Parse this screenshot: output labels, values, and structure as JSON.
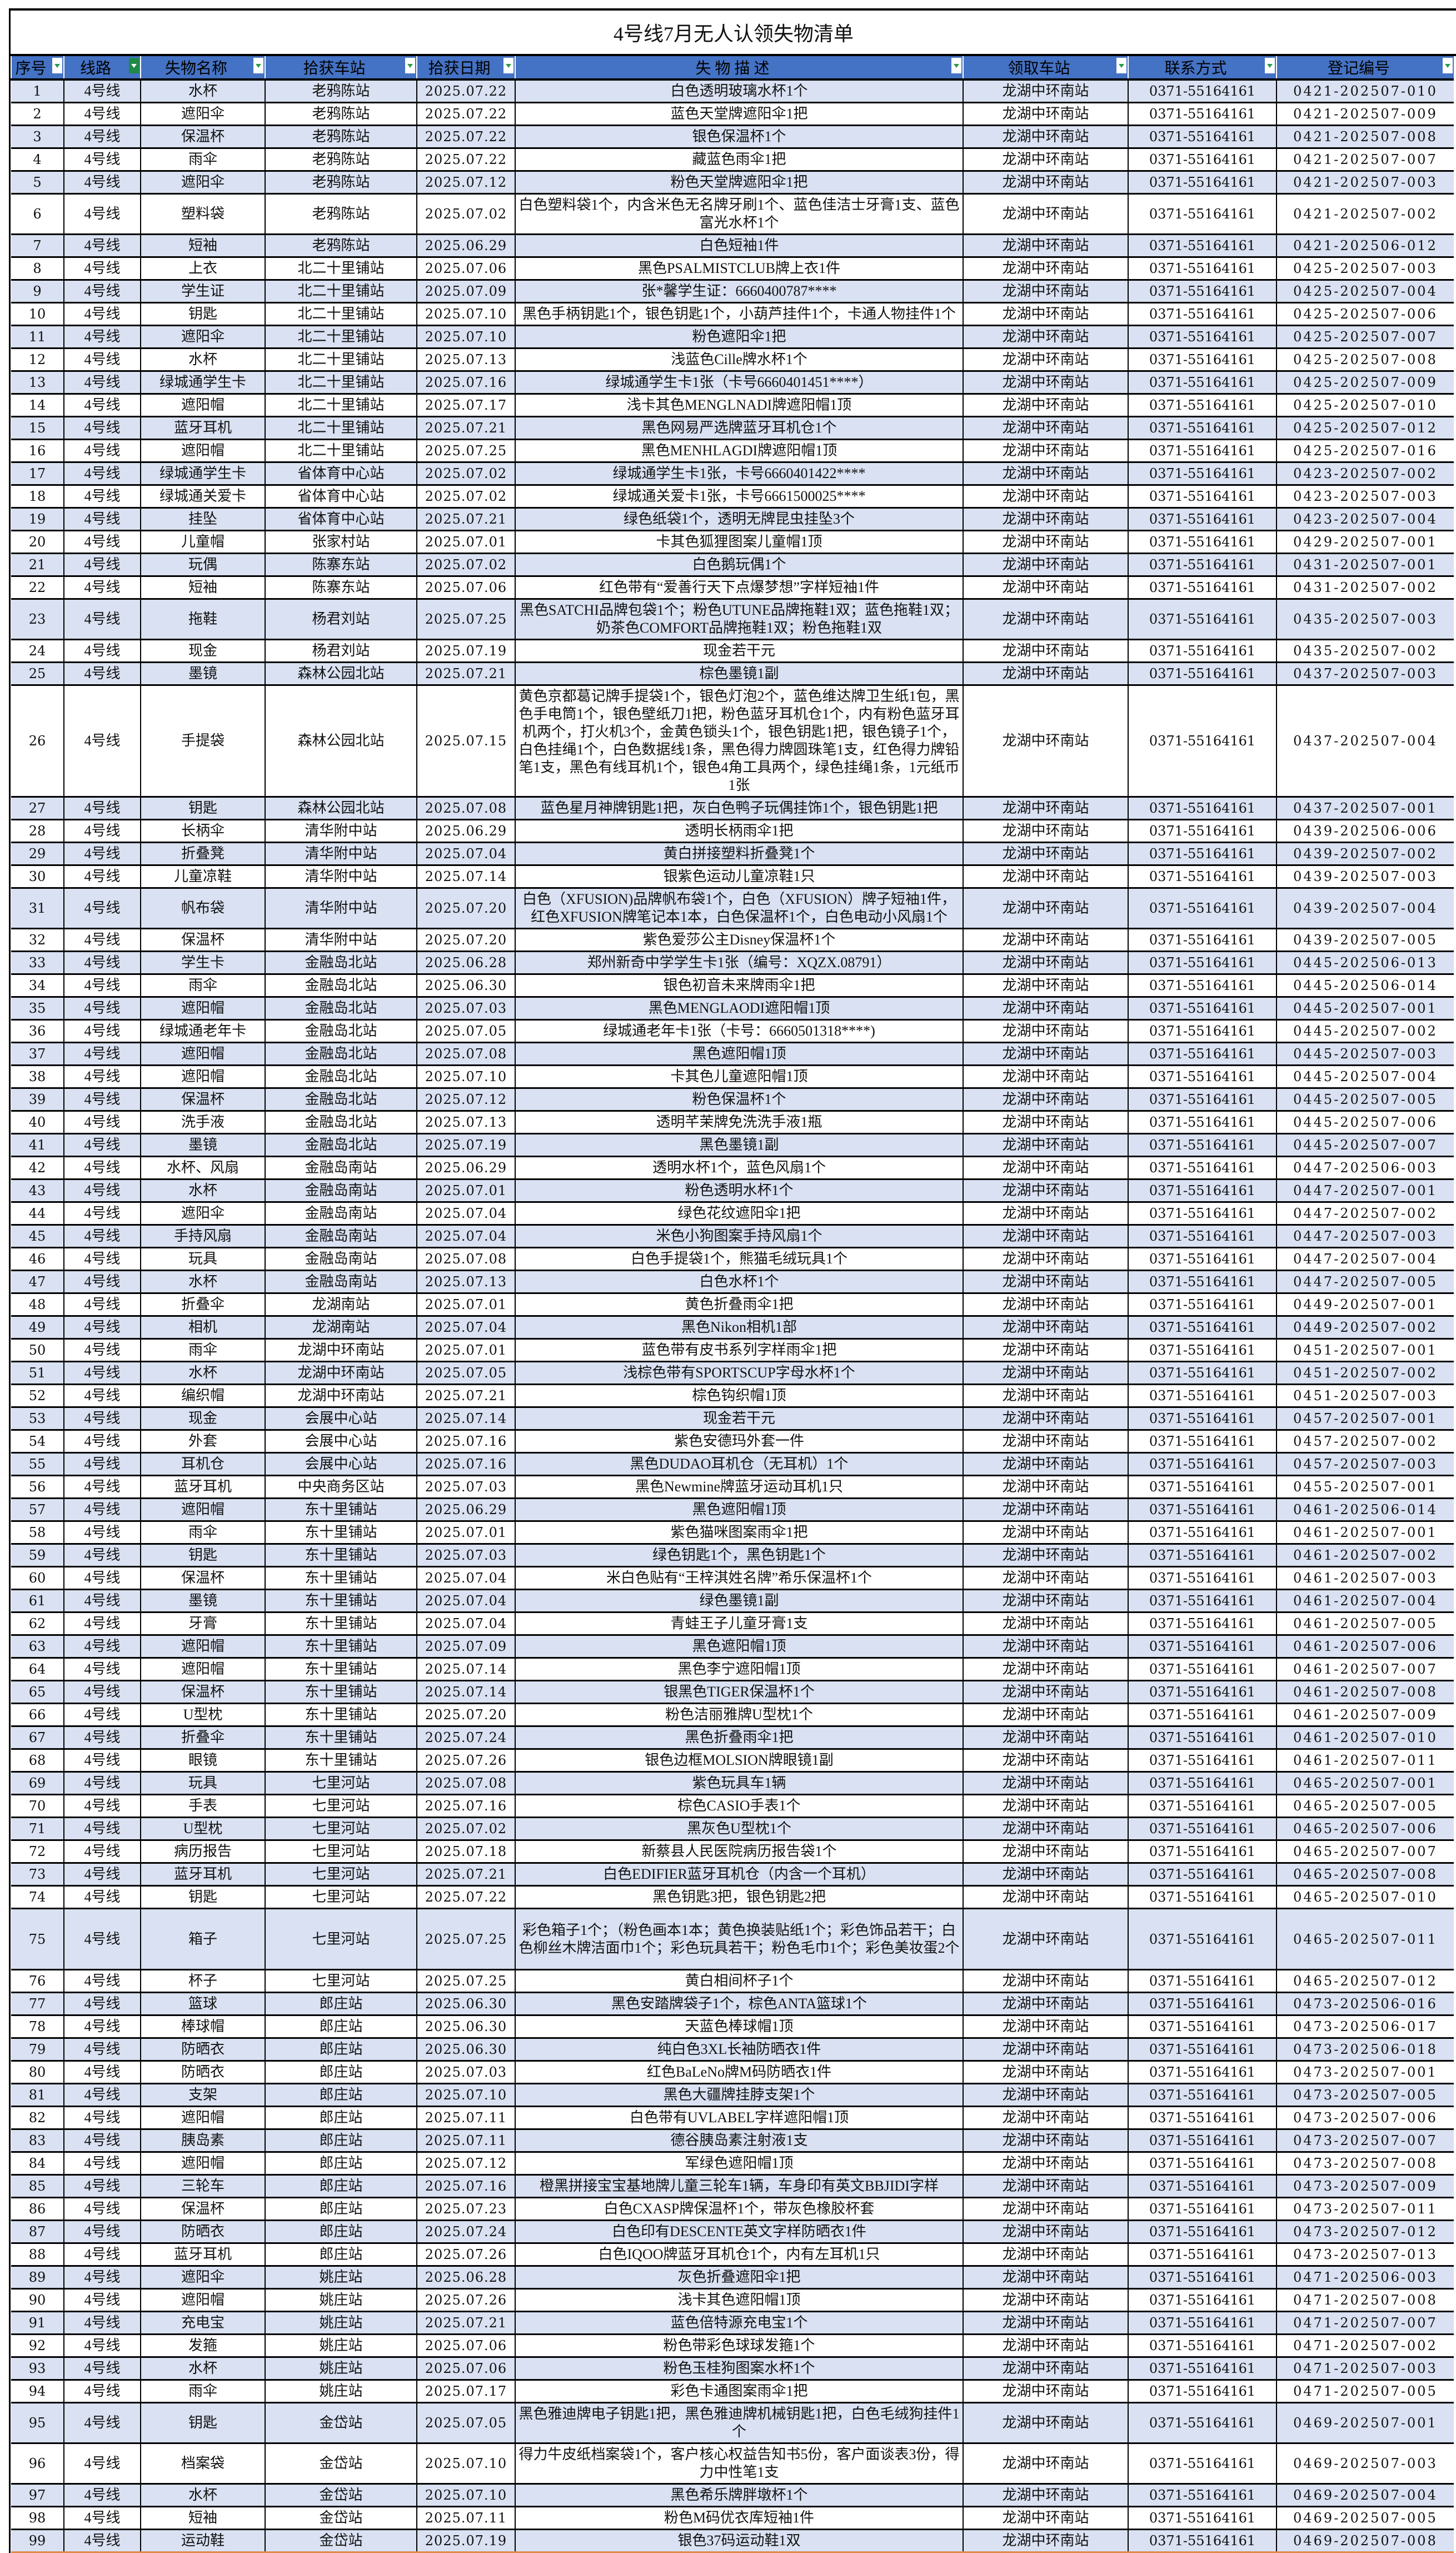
{
  "title": "4号线7月无人认领失物清单",
  "colors": {
    "header_bg": "#4472C4",
    "alt_row_bg": "#D9E1F2",
    "filter_icon": "#2a9a4a"
  },
  "columns": [
    {
      "label": "序号",
      "filter": "dropdown"
    },
    {
      "label": "线路",
      "filter": "filter-active"
    },
    {
      "label": "失物名称",
      "filter": "dropdown"
    },
    {
      "label": "拾获车站",
      "filter": "dropdown"
    },
    {
      "label": "拾获日期",
      "filter": "dropdown"
    },
    {
      "label": "失 物 描 述",
      "filter": "dropdown"
    },
    {
      "label": "领取车站",
      "filter": "dropdown"
    },
    {
      "label": "联系方式",
      "filter": "dropdown"
    },
    {
      "label": "登记编号",
      "filter": "dropdown"
    }
  ],
  "line": "4号线",
  "pickup_station": "龙湖中环南站",
  "phone": "0371-55164161",
  "rows": [
    {
      "no": "1",
      "name": "水杯",
      "station": "老鸦陈站",
      "date": "2025.07.22",
      "desc": "白色透明玻璃水杯1个",
      "code": "0421-202507-010"
    },
    {
      "no": "2",
      "name": "遮阳伞",
      "station": "老鸦陈站",
      "date": "2025.07.22",
      "desc": "蓝色天堂牌遮阳伞1把",
      "code": "0421-202507-009"
    },
    {
      "no": "3",
      "name": "保温杯",
      "station": "老鸦陈站",
      "date": "2025.07.22",
      "desc": "银色保温杯1个",
      "code": "0421-202507-008"
    },
    {
      "no": "4",
      "name": "雨伞",
      "station": "老鸦陈站",
      "date": "2025.07.22",
      "desc": "藏蓝色雨伞1把",
      "code": "0421-202507-007"
    },
    {
      "no": "5",
      "name": "遮阳伞",
      "station": "老鸦陈站",
      "date": "2025.07.12",
      "desc": "粉色天堂牌遮阳伞1把",
      "code": "0421-202507-003"
    },
    {
      "no": "6",
      "name": "塑料袋",
      "station": "老鸦陈站",
      "date": "2025.07.02",
      "desc": "白色塑料袋1个，内含米色无名牌牙刷1个、蓝色佳洁士牙膏1支、蓝色富光水杯1个",
      "code": "0421-202507-002"
    },
    {
      "no": "7",
      "name": "短袖",
      "station": "老鸦陈站",
      "date": "2025.06.29",
      "desc": "白色短袖1件",
      "code": "0421-202506-012"
    },
    {
      "no": "8",
      "name": "上衣",
      "station": "北二十里铺站",
      "date": "2025.07.06",
      "desc": "黑色PSALMISTCLUB牌上衣1件",
      "code": "0425-202507-003"
    },
    {
      "no": "9",
      "name": "学生证",
      "station": "北二十里铺站",
      "date": "2025.07.09",
      "desc": "张*馨学生证：6660400787****",
      "code": "0425-202507-004"
    },
    {
      "no": "10",
      "name": "钥匙",
      "station": "北二十里铺站",
      "date": "2025.07.10",
      "desc": "黑色手柄钥匙1个，银色钥匙1个，小葫芦挂件1个，卡通人物挂件1个",
      "code": "0425-202507-006"
    },
    {
      "no": "11",
      "name": "遮阳伞",
      "station": "北二十里铺站",
      "date": "2025.07.10",
      "desc": "粉色遮阳伞1把",
      "code": "0425-202507-007"
    },
    {
      "no": "12",
      "name": "水杯",
      "station": "北二十里铺站",
      "date": "2025.07.13",
      "desc": "浅蓝色Cille牌水杯1个",
      "code": "0425-202507-008"
    },
    {
      "no": "13",
      "name": "绿城通学生卡",
      "station": "北二十里铺站",
      "date": "2025.07.16",
      "desc": "绿城通学生卡1张（卡号6660401451****）",
      "code": "0425-202507-009"
    },
    {
      "no": "14",
      "name": "遮阳帽",
      "station": "北二十里铺站",
      "date": "2025.07.17",
      "desc": "浅卡其色MENGLNADI牌遮阳帽1顶",
      "code": "0425-202507-010"
    },
    {
      "no": "15",
      "name": "蓝牙耳机",
      "station": "北二十里铺站",
      "date": "2025.07.21",
      "desc": "黑色网易严选牌蓝牙耳机仓1个",
      "code": "0425-202507-012"
    },
    {
      "no": "16",
      "name": "遮阳帽",
      "station": "北二十里铺站",
      "date": "2025.07.25",
      "desc": "黑色MENHLAGDI牌遮阳帽1顶",
      "code": "0425-202507-016"
    },
    {
      "no": "17",
      "name": "绿城通学生卡",
      "station": "省体育中心站",
      "date": "2025.07.02",
      "desc": "绿城通学生卡1张，卡号6660401422****",
      "code": "0423-202507-002"
    },
    {
      "no": "18",
      "name": "绿城通关爱卡",
      "station": "省体育中心站",
      "date": "2025.07.02",
      "desc": "绿城通关爱卡1张，卡号6661500025****",
      "code": "0423-202507-003"
    },
    {
      "no": "19",
      "name": "挂坠",
      "station": "省体育中心站",
      "date": "2025.07.21",
      "desc": "绿色纸袋1个，透明无牌昆虫挂坠3个",
      "code": "0423-202507-004"
    },
    {
      "no": "20",
      "name": "儿童帽",
      "station": "张家村站",
      "date": "2025.07.01",
      "desc": "卡其色狐狸图案儿童帽1顶",
      "code": "0429-202507-001"
    },
    {
      "no": "21",
      "name": "玩偶",
      "station": "陈寨东站",
      "date": "2025.07.02",
      "desc": "白色鹅玩偶1个",
      "code": "0431-202507-001"
    },
    {
      "no": "22",
      "name": "短袖",
      "station": "陈寨东站",
      "date": "2025.07.06",
      "desc": "红色带有“爱善行天下点爆梦想”字样短袖1件",
      "code": "0431-202507-002"
    },
    {
      "no": "23",
      "name": "拖鞋",
      "station": "杨君刘站",
      "date": "2025.07.25",
      "desc": "黑色SATCHI品牌包袋1个；粉色UTUNE品牌拖鞋1双；蓝色拖鞋1双；奶茶色COMFORT品牌拖鞋1双；粉色拖鞋1双",
      "code": "0435-202507-003"
    },
    {
      "no": "24",
      "name": "现金",
      "station": "杨君刘站",
      "date": "2025.07.19",
      "desc": "现金若干元",
      "code": "0435-202507-002"
    },
    {
      "no": "25",
      "name": "墨镜",
      "station": "森林公园北站",
      "date": "2025.07.21",
      "desc": "棕色墨镜1副",
      "code": "0437-202507-003"
    },
    {
      "no": "26",
      "name": "手提袋",
      "station": "森林公园北站",
      "date": "2025.07.15",
      "desc": "黄色京都葛记牌手提袋1个，银色灯泡2个，蓝色维达牌卫生纸1包，黑色手电筒1个，银色壁纸刀1把，粉色蓝牙耳机仓1个，内有粉色蓝牙耳机两个，打火机3个，金黄色锁头1个，银色钥匙1把，银色镜子1个，白色挂绳1个，白色数据线1条，黑色得力牌圆珠笔1支，红色得力牌铅笔1支，黑色有线耳机1个，银色4角工具两个，绿色挂绳1条，1元纸币1张",
      "code": "0437-202507-004"
    },
    {
      "no": "27",
      "name": "钥匙",
      "station": "森林公园北站",
      "date": "2025.07.08",
      "desc": "蓝色星月神牌钥匙1把，灰白色鸭子玩偶挂饰1个，银色钥匙1把",
      "code": "0437-202507-001"
    },
    {
      "no": "28",
      "name": "长柄伞",
      "station": "清华附中站",
      "date": "2025.06.29",
      "desc": "透明长柄雨伞1把",
      "code": "0439-202506-006"
    },
    {
      "no": "29",
      "name": "折叠凳",
      "station": "清华附中站",
      "date": "2025.07.04",
      "desc": "黄白拼接塑料折叠凳1个",
      "code": "0439-202507-002"
    },
    {
      "no": "30",
      "name": "儿童凉鞋",
      "station": "清华附中站",
      "date": "2025.07.14",
      "desc": "银紫色运动儿童凉鞋1只",
      "code": "0439-202507-003"
    },
    {
      "no": "31",
      "name": "帆布袋",
      "station": "清华附中站",
      "date": "2025.07.20",
      "desc": "白色（XFUSION)品牌帆布袋1个，白色（XFUSION）牌子短袖1件，红色XFUSION牌笔记本1本，白色保温杯1个，白色电动小风扇1个",
      "code": "0439-202507-004"
    },
    {
      "no": "32",
      "name": "保温杯",
      "station": "清华附中站",
      "date": "2025.07.20",
      "desc": "紫色爱莎公主Disney保温杯1个",
      "code": "0439-202507-005"
    },
    {
      "no": "33",
      "name": "学生卡",
      "station": "金融岛北站",
      "date": "2025.06.28",
      "desc": "郑州新奇中学学生卡1张（编号：XQZX.08791）",
      "code": "0445-202506-013"
    },
    {
      "no": "34",
      "name": "雨伞",
      "station": "金融岛北站",
      "date": "2025.06.30",
      "desc": "银色初音未来牌雨伞1把",
      "code": "0445-202506-014"
    },
    {
      "no": "35",
      "name": "遮阳帽",
      "station": "金融岛北站",
      "date": "2025.07.03",
      "desc": "黑色MENGLAODI遮阳帽1顶",
      "code": "0445-202507-001"
    },
    {
      "no": "36",
      "name": "绿城通老年卡",
      "station": "金融岛北站",
      "date": "2025.07.05",
      "desc": "绿城通老年卡1张（卡号：6660501318****)",
      "code": "0445-202507-002"
    },
    {
      "no": "37",
      "name": "遮阳帽",
      "station": "金融岛北站",
      "date": "2025.07.08",
      "desc": "黑色遮阳帽1顶",
      "code": "0445-202507-003"
    },
    {
      "no": "38",
      "name": "遮阳帽",
      "station": "金融岛北站",
      "date": "2025.07.10",
      "desc": "卡其色儿童遮阳帽1顶",
      "code": "0445-202507-004"
    },
    {
      "no": "39",
      "name": "保温杯",
      "station": "金融岛北站",
      "date": "2025.07.12",
      "desc": "粉色保温杯1个",
      "code": "0445-202507-005"
    },
    {
      "no": "40",
      "name": "洗手液",
      "station": "金融岛北站",
      "date": "2025.07.13",
      "desc": "透明芊茉牌免洗洗手液1瓶",
      "code": "0445-202507-006"
    },
    {
      "no": "41",
      "name": "墨镜",
      "station": "金融岛北站",
      "date": "2025.07.19",
      "desc": "黑色墨镜1副",
      "code": "0445-202507-007"
    },
    {
      "no": "42",
      "name": "水杯、风扇",
      "station": "金融岛南站",
      "date": "2025.06.29",
      "desc": "透明水杯1个，蓝色风扇1个",
      "code": "0447-202506-003"
    },
    {
      "no": "43",
      "name": "水杯",
      "station": "金融岛南站",
      "date": "2025.07.01",
      "desc": "粉色透明水杯1个",
      "code": "0447-202507-001"
    },
    {
      "no": "44",
      "name": "遮阳伞",
      "station": "金融岛南站",
      "date": "2025.07.04",
      "desc": "绿色花纹遮阳伞1把",
      "code": "0447-202507-002"
    },
    {
      "no": "45",
      "name": "手持风扇",
      "station": "金融岛南站",
      "date": "2025.07.04",
      "desc": "米色小狗图案手持风扇1个",
      "code": "0447-202507-003"
    },
    {
      "no": "46",
      "name": "玩具",
      "station": "金融岛南站",
      "date": "2025.07.08",
      "desc": "白色手提袋1个，熊猫毛绒玩具1个",
      "code": "0447-202507-004"
    },
    {
      "no": "47",
      "name": "水杯",
      "station": "金融岛南站",
      "date": "2025.07.13",
      "desc": "白色水杯1个",
      "code": "0447-202507-005"
    },
    {
      "no": "48",
      "name": "折叠伞",
      "station": "龙湖南站",
      "date": "2025.07.01",
      "desc": "黄色折叠雨伞1把",
      "code": "0449-202507-001"
    },
    {
      "no": "49",
      "name": "相机",
      "station": "龙湖南站",
      "date": "2025.07.04",
      "desc": "黑色Nikon相机1部",
      "code": "0449-202507-002"
    },
    {
      "no": "50",
      "name": "雨伞",
      "station": "龙湖中环南站",
      "date": "2025.07.01",
      "desc": "蓝色带有皮书系列字样雨伞1把",
      "code": "0451-202507-001"
    },
    {
      "no": "51",
      "name": "水杯",
      "station": "龙湖中环南站",
      "date": "2025.07.05",
      "desc": "浅棕色带有SPORTSCUP字母水杯1个",
      "code": "0451-202507-002"
    },
    {
      "no": "52",
      "name": "编织帽",
      "station": "龙湖中环南站",
      "date": "2025.07.21",
      "desc": "棕色钩织帽1顶",
      "code": "0451-202507-003"
    },
    {
      "no": "53",
      "name": "现金",
      "station": "会展中心站",
      "date": "2025.07.14",
      "desc": "现金若干元",
      "code": "0457-202507-001"
    },
    {
      "no": "54",
      "name": "外套",
      "station": "会展中心站",
      "date": "2025.07.16",
      "desc": "紫色安德玛外套一件",
      "code": "0457-202507-002"
    },
    {
      "no": "55",
      "name": "耳机仓",
      "station": "会展中心站",
      "date": "2025.07.16",
      "desc": "黑色DUDAO耳机仓（无耳机）1个",
      "code": "0457-202507-003"
    },
    {
      "no": "56",
      "name": "蓝牙耳机",
      "station": "中央商务区站",
      "date": "2025.07.03",
      "desc": "黑色Newmine牌蓝牙运动耳机1只",
      "code": "0455-202507-001"
    },
    {
      "no": "57",
      "name": "遮阳帽",
      "station": "东十里铺站",
      "date": "2025.06.29",
      "desc": "黑色遮阳帽1顶",
      "code": "0461-202506-014"
    },
    {
      "no": "58",
      "name": "雨伞",
      "station": "东十里铺站",
      "date": "2025.07.01",
      "desc": "紫色猫咪图案雨伞1把",
      "code": "0461-202507-001"
    },
    {
      "no": "59",
      "name": "钥匙",
      "station": "东十里铺站",
      "date": "2025.07.03",
      "desc": "绿色钥匙1个，黑色钥匙1个",
      "code": "0461-202507-002"
    },
    {
      "no": "60",
      "name": "保温杯",
      "station": "东十里铺站",
      "date": "2025.07.04",
      "desc": "米白色贴有“王梓淇姓名牌”希乐保温杯1个",
      "code": "0461-202507-003"
    },
    {
      "no": "61",
      "name": "墨镜",
      "station": "东十里铺站",
      "date": "2025.07.04",
      "desc": "绿色墨镜1副",
      "code": "0461-202507-004"
    },
    {
      "no": "62",
      "name": "牙膏",
      "station": "东十里铺站",
      "date": "2025.07.04",
      "desc": "青蛙王子儿童牙膏1支",
      "code": "0461-202507-005"
    },
    {
      "no": "63",
      "name": "遮阳帽",
      "station": "东十里铺站",
      "date": "2025.07.09",
      "desc": "黑色遮阳帽1顶",
      "code": "0461-202507-006"
    },
    {
      "no": "64",
      "name": "遮阳帽",
      "station": "东十里铺站",
      "date": "2025.07.14",
      "desc": "黑色李宁遮阳帽1顶",
      "code": "0461-202507-007"
    },
    {
      "no": "65",
      "name": "保温杯",
      "station": "东十里铺站",
      "date": "2025.07.14",
      "desc": "银黑色TIGER保温杯1个",
      "code": "0461-202507-008"
    },
    {
      "no": "66",
      "name": "U型枕",
      "station": "东十里铺站",
      "date": "2025.07.20",
      "desc": "粉色洁丽雅牌U型枕1个",
      "code": "0461-202507-009"
    },
    {
      "no": "67",
      "name": "折叠伞",
      "station": "东十里铺站",
      "date": "2025.07.24",
      "desc": "黑色折叠雨伞1把",
      "code": "0461-202507-010"
    },
    {
      "no": "68",
      "name": "眼镜",
      "station": "东十里铺站",
      "date": "2025.07.26",
      "desc": "银色边框MOLSION牌眼镜1副",
      "code": "0461-202507-011"
    },
    {
      "no": "69",
      "name": "玩具",
      "station": "七里河站",
      "date": "2025.07.08",
      "desc": "紫色玩具车1辆",
      "code": "0465-202507-001"
    },
    {
      "no": "70",
      "name": "手表",
      "station": "七里河站",
      "date": "2025.07.16",
      "desc": "棕色CASIO手表1个",
      "code": "0465-202507-005"
    },
    {
      "no": "71",
      "name": "U型枕",
      "station": "七里河站",
      "date": "2025.07.02",
      "desc": "黑灰色U型枕1个",
      "code": "0465-202507-006"
    },
    {
      "no": "72",
      "name": "病历报告",
      "station": "七里河站",
      "date": "2025.07.18",
      "desc": "新蔡县人民医院病历报告袋1个",
      "code": "0465-202507-007"
    },
    {
      "no": "73",
      "name": "蓝牙耳机",
      "station": "七里河站",
      "date": "2025.07.21",
      "desc": "白色EDIFIER蓝牙耳机仓（内含一个耳机）",
      "code": "0465-202507-008"
    },
    {
      "no": "74",
      "name": "钥匙",
      "station": "七里河站",
      "date": "2025.07.22",
      "desc": "黑色钥匙3把，银色钥匙2把",
      "code": "0465-202507-010"
    },
    {
      "no": "75",
      "name": "箱子",
      "station": "七里河站",
      "date": "2025.07.25",
      "desc": "彩色箱子1个；（粉色画本1本；黄色换装贴纸1个；彩色饰品若干；白色柳丝木牌洁面巾1个；彩色玩具若干；粉色毛巾1个；彩色美妆蛋2个",
      "code": "0465-202507-011"
    },
    {
      "no": "76",
      "name": "杯子",
      "station": "七里河站",
      "date": "2025.07.25",
      "desc": "黄白相间杯子1个",
      "code": "0465-202507-012"
    },
    {
      "no": "77",
      "name": "篮球",
      "station": "郎庄站",
      "date": "2025.06.30",
      "desc": "黑色安踏牌袋子1个，棕色ANTA篮球1个",
      "code": "0473-202506-016"
    },
    {
      "no": "78",
      "name": "棒球帽",
      "station": "郎庄站",
      "date": "2025.06.30",
      "desc": "天蓝色棒球帽1顶",
      "code": "0473-202506-017"
    },
    {
      "no": "79",
      "name": "防晒衣",
      "station": "郎庄站",
      "date": "2025.06.30",
      "desc": "纯白色3XL长袖防晒衣1件",
      "code": "0473-202506-018"
    },
    {
      "no": "80",
      "name": "防晒衣",
      "station": "郎庄站",
      "date": "2025.07.03",
      "desc": "红色BaLeNo牌M码防晒衣1件",
      "code": "0473-202507-001"
    },
    {
      "no": "81",
      "name": "支架",
      "station": "郎庄站",
      "date": "2025.07.10",
      "desc": "黑色大疆牌挂脖支架1个",
      "code": "0473-202507-005"
    },
    {
      "no": "82",
      "name": "遮阳帽",
      "station": "郎庄站",
      "date": "2025.07.11",
      "desc": "白色带有UVLABEL字样遮阳帽1顶",
      "code": "0473-202507-006"
    },
    {
      "no": "83",
      "name": "胰岛素",
      "station": "郎庄站",
      "date": "2025.07.11",
      "desc": "德谷胰岛素注射液1支",
      "code": "0473-202507-007"
    },
    {
      "no": "84",
      "name": "遮阳帽",
      "station": "郎庄站",
      "date": "2025.07.12",
      "desc": "军绿色遮阳帽1顶",
      "code": "0473-202507-008"
    },
    {
      "no": "85",
      "name": "三轮车",
      "station": "郎庄站",
      "date": "2025.07.16",
      "desc": "橙黑拼接宝宝基地牌儿童三轮车1辆，车身印有英文BBJIDI字样",
      "code": "0473-202507-009"
    },
    {
      "no": "86",
      "name": "保温杯",
      "station": "郎庄站",
      "date": "2025.07.23",
      "desc": "白色CXASP牌保温杯1个，带灰色橡胶杯套",
      "code": "0473-202507-011"
    },
    {
      "no": "87",
      "name": "防晒衣",
      "station": "郎庄站",
      "date": "2025.07.24",
      "desc": "白色印有DESCENTE英文字样防晒衣1件",
      "code": "0473-202507-012"
    },
    {
      "no": "88",
      "name": "蓝牙耳机",
      "station": "郎庄站",
      "date": "2025.07.26",
      "desc": "白色IQOO牌蓝牙耳机仓1个，内有左耳机1只",
      "code": "0473-202507-013"
    },
    {
      "no": "89",
      "name": "遮阳伞",
      "station": "姚庄站",
      "date": "2025.06.28",
      "desc": "灰色折叠遮阳伞1把",
      "code": "0471-202506-003"
    },
    {
      "no": "90",
      "name": "遮阳帽",
      "station": "姚庄站",
      "date": "2025.07.26",
      "desc": "浅卡其色遮阳帽1顶",
      "code": "0471-202507-008"
    },
    {
      "no": "91",
      "name": "充电宝",
      "station": "姚庄站",
      "date": "2025.07.21",
      "desc": "蓝色倍特源充电宝1个",
      "code": "0471-202507-007"
    },
    {
      "no": "92",
      "name": "发箍",
      "station": "姚庄站",
      "date": "2025.07.06",
      "desc": "粉色带彩色球球发箍1个",
      "code": "0471-202507-002"
    },
    {
      "no": "93",
      "name": "水杯",
      "station": "姚庄站",
      "date": "2025.07.06",
      "desc": "粉色玉桂狗图案水杯1个",
      "code": "0471-202507-003"
    },
    {
      "no": "94",
      "name": "雨伞",
      "station": "姚庄站",
      "date": "2025.07.17",
      "desc": "彩色卡通图案雨伞1把",
      "code": "0471-202507-005"
    },
    {
      "no": "95",
      "name": "钥匙",
      "station": "金岱站",
      "date": "2025.07.05",
      "desc": "黑色雅迪牌电子钥匙1把，黑色雅迪牌机械钥匙1把，白色毛绒狗挂件1个",
      "code": "0469-202507-001"
    },
    {
      "no": "96",
      "name": "档案袋",
      "station": "金岱站",
      "date": "2025.07.10",
      "desc": "得力牛皮纸档案袋1个，客户核心权益告知书5份，客户面谈表3份，得力中性笔1支",
      "code": "0469-202507-003"
    },
    {
      "no": "97",
      "name": "水杯",
      "station": "金岱站",
      "date": "2025.07.10",
      "desc": "黑色希乐牌胖墩杯1个",
      "code": "0469-202507-004"
    },
    {
      "no": "98",
      "name": "短袖",
      "station": "金岱站",
      "date": "2025.07.11",
      "desc": "粉色M码优衣库短袖1件",
      "code": "0469-202507-005"
    },
    {
      "no": "99",
      "name": "运动鞋",
      "station": "金岱站",
      "date": "2025.07.19",
      "desc": "银色37码运动鞋1双",
      "code": "0469-202507-008"
    }
  ]
}
